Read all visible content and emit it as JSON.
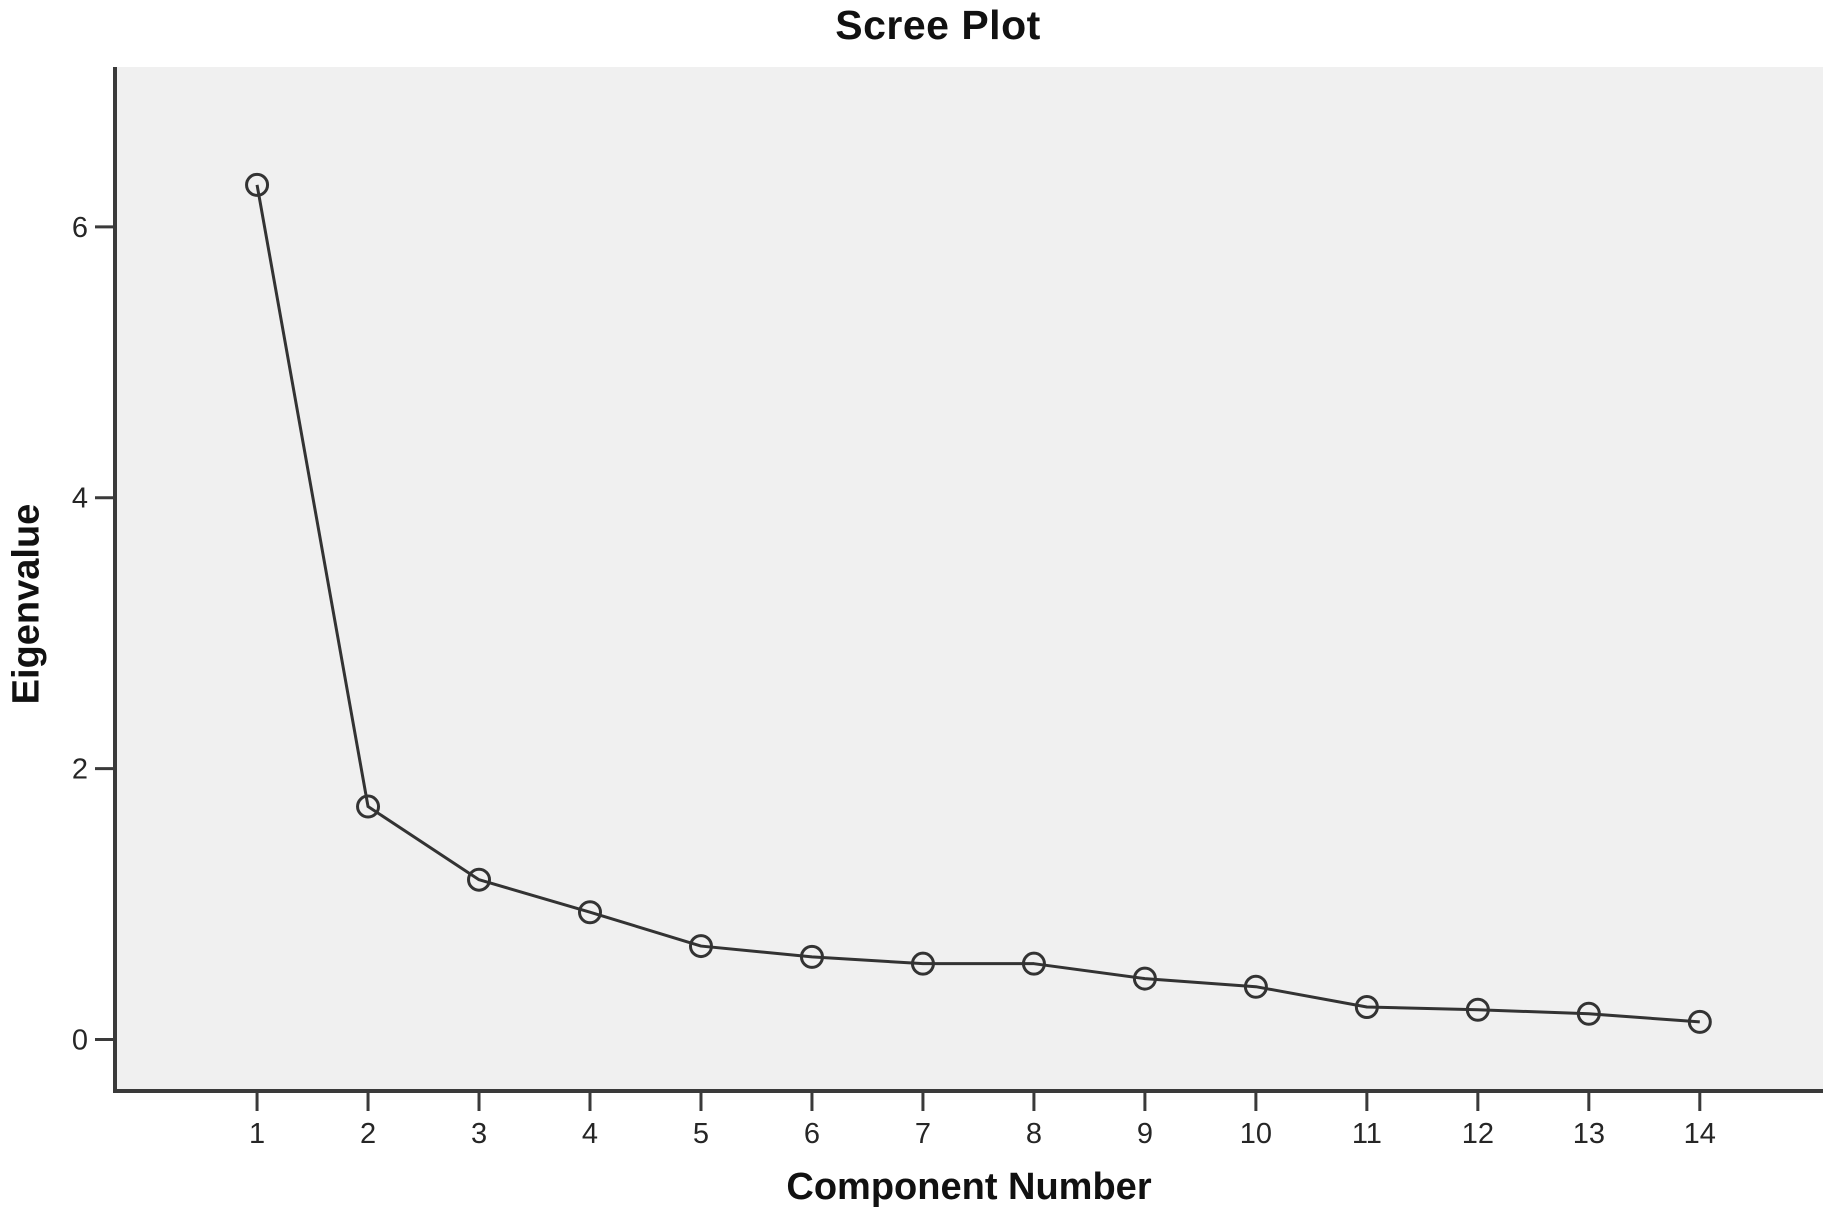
{
  "chart_data": {
    "type": "line",
    "title": "Scree Plot",
    "xlabel": "Component Number",
    "ylabel": "Eigenvalue",
    "x": [
      1,
      2,
      3,
      4,
      5,
      6,
      7,
      8,
      9,
      10,
      11,
      12,
      13,
      14
    ],
    "series": [
      {
        "name": "Eigenvalue",
        "values": [
          6.31,
          1.72,
          1.18,
          0.94,
          0.69,
          0.61,
          0.56,
          0.56,
          0.45,
          0.39,
          0.24,
          0.22,
          0.19,
          0.13
        ]
      }
    ],
    "xticks": [
      1,
      2,
      3,
      4,
      5,
      6,
      7,
      8,
      9,
      10,
      11,
      12,
      13,
      14
    ],
    "yticks": [
      0,
      2,
      4,
      6
    ],
    "xlim": [
      -0.28,
      15.11
    ],
    "ylim": [
      -0.38,
      7.18
    ],
    "grid": false,
    "legend": false,
    "marker": "open-circle",
    "colors": {
      "line": "#333333",
      "marker_stroke": "#333333",
      "axis": "#3a3a3a",
      "tick_text": "#262626",
      "plot_bg": "#f0f0f0",
      "page_bg": "#ffffff",
      "title_text": "#111111"
    }
  }
}
